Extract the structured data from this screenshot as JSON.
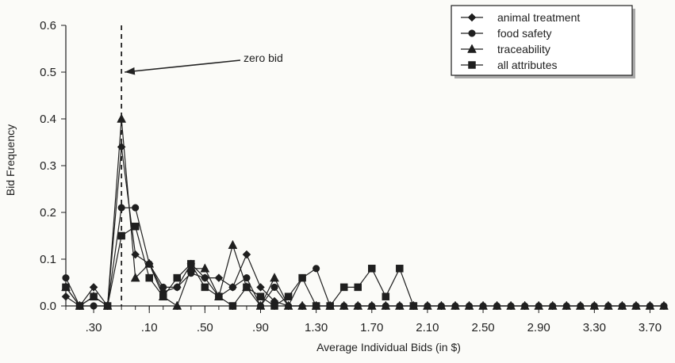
{
  "chart_data": {
    "type": "line",
    "xlabel": "Average Individual Bids (in $)",
    "ylabel": "Bid Frequency",
    "xlim": [
      -0.5,
      3.8
    ],
    "ylim": [
      0,
      0.6
    ],
    "yticks": [
      0.0,
      0.1,
      0.2,
      0.3,
      0.4,
      0.5,
      0.6
    ],
    "ytick_labels": [
      "0.0",
      "0.1",
      "0.2",
      "0.3",
      "0.4",
      "0.5",
      "0.6"
    ],
    "xtick_labels": [
      ".30",
      ".10",
      ".50",
      ".90",
      "1.30",
      "1.70",
      "2.10",
      "2.50",
      "2.90",
      "3.30",
      "3.70"
    ],
    "xtick_values": [
      -0.3,
      0.1,
      0.5,
      0.9,
      1.3,
      1.7,
      2.1,
      2.5,
      2.9,
      3.3,
      3.7
    ],
    "x": [
      -0.5,
      -0.4,
      -0.3,
      -0.2,
      -0.1,
      0.0,
      0.1,
      0.2,
      0.3,
      0.4,
      0.5,
      0.6,
      0.7,
      0.8,
      0.9,
      1.0,
      1.1,
      1.2,
      1.3,
      1.4,
      1.5,
      1.6,
      1.7,
      1.8,
      1.9,
      2.0,
      2.1,
      2.2,
      2.3,
      2.4,
      2.5,
      2.6,
      2.7,
      2.8,
      2.9,
      3.0,
      3.1,
      3.2,
      3.3,
      3.4,
      3.5,
      3.6,
      3.7,
      3.8
    ],
    "series": [
      {
        "name": "animal treatment",
        "marker": "diamond",
        "points": [
          [
            -0.5,
            0.02
          ],
          [
            -0.4,
            0.0
          ],
          [
            -0.3,
            0.04
          ],
          [
            -0.2,
            0.0
          ],
          [
            -0.1,
            0.34
          ],
          [
            0.0,
            0.11
          ],
          [
            0.1,
            0.09
          ],
          [
            0.2,
            0.03
          ],
          [
            0.3,
            0.04
          ],
          [
            0.4,
            0.09
          ],
          [
            0.5,
            0.06
          ],
          [
            0.6,
            0.06
          ],
          [
            0.7,
            0.04
          ],
          [
            0.8,
            0.11
          ],
          [
            0.9,
            0.04
          ],
          [
            1.0,
            0.01
          ],
          [
            1.1,
            0.0
          ],
          [
            1.2,
            0.0
          ]
        ]
      },
      {
        "name": "food safety",
        "marker": "circle",
        "points": [
          [
            -0.5,
            0.06
          ],
          [
            -0.4,
            0.0
          ],
          [
            -0.3,
            0.0
          ],
          [
            -0.2,
            0.0
          ],
          [
            -0.1,
            0.21
          ],
          [
            0.0,
            0.21
          ],
          [
            0.1,
            0.09
          ],
          [
            0.2,
            0.04
          ],
          [
            0.3,
            0.04
          ],
          [
            0.4,
            0.07
          ],
          [
            0.5,
            0.06
          ],
          [
            0.6,
            0.02
          ],
          [
            0.7,
            0.04
          ],
          [
            0.8,
            0.06
          ],
          [
            0.9,
            0.0
          ],
          [
            1.0,
            0.04
          ],
          [
            1.1,
            0.0
          ],
          [
            1.2,
            0.06
          ],
          [
            1.3,
            0.08
          ],
          [
            1.4,
            0.0
          ],
          [
            1.5,
            0.0
          ],
          [
            1.6,
            0.0
          ],
          [
            1.7,
            0.0
          ],
          [
            1.8,
            0.0
          ],
          [
            1.9,
            0.0
          ],
          [
            2.0,
            0.0
          ],
          [
            2.1,
            0.0
          ],
          [
            2.2,
            0.0
          ],
          [
            2.3,
            0.0
          ],
          [
            2.4,
            0.0
          ],
          [
            2.5,
            0.0
          ],
          [
            2.6,
            0.0
          ],
          [
            2.7,
            0.0
          ],
          [
            2.8,
            0.0
          ],
          [
            2.9,
            0.0
          ],
          [
            3.0,
            0.0
          ],
          [
            3.1,
            0.0
          ],
          [
            3.2,
            0.0
          ],
          [
            3.3,
            0.0
          ],
          [
            3.4,
            0.0
          ],
          [
            3.5,
            0.0
          ],
          [
            3.6,
            0.0
          ],
          [
            3.7,
            0.0
          ],
          [
            3.8,
            0.0
          ]
        ]
      },
      {
        "name": "traceability",
        "marker": "triangle",
        "points": [
          [
            -0.5,
            0.04
          ],
          [
            -0.4,
            0.0
          ],
          [
            -0.3,
            0.02
          ],
          [
            -0.2,
            0.0
          ],
          [
            -0.1,
            0.4
          ],
          [
            0.0,
            0.06
          ],
          [
            0.1,
            0.09
          ],
          [
            0.2,
            0.02
          ],
          [
            0.3,
            0.0
          ],
          [
            0.4,
            0.08
          ],
          [
            0.5,
            0.08
          ],
          [
            0.6,
            0.02
          ],
          [
            0.7,
            0.13
          ],
          [
            0.8,
            0.04
          ],
          [
            0.9,
            0.0
          ],
          [
            1.0,
            0.06
          ],
          [
            1.1,
            0.0
          ],
          [
            1.2,
            0.0
          ],
          [
            1.3,
            0.0
          ],
          [
            1.4,
            0.0
          ],
          [
            1.5,
            0.0
          ],
          [
            1.6,
            0.0
          ],
          [
            1.7,
            0.0
          ],
          [
            1.8,
            0.0
          ],
          [
            1.9,
            0.0
          ],
          [
            2.0,
            0.0
          ],
          [
            2.1,
            0.0
          ],
          [
            2.2,
            0.0
          ],
          [
            2.3,
            0.0
          ],
          [
            2.4,
            0.0
          ],
          [
            2.5,
            0.0
          ],
          [
            2.6,
            0.0
          ],
          [
            2.7,
            0.0
          ],
          [
            2.8,
            0.0
          ],
          [
            2.9,
            0.0
          ],
          [
            3.0,
            0.0
          ],
          [
            3.1,
            0.0
          ],
          [
            3.2,
            0.0
          ],
          [
            3.3,
            0.0
          ],
          [
            3.4,
            0.0
          ],
          [
            3.5,
            0.0
          ],
          [
            3.6,
            0.0
          ],
          [
            3.7,
            0.0
          ],
          [
            3.8,
            0.0
          ]
        ]
      },
      {
        "name": "all attributes",
        "marker": "square",
        "points": [
          [
            -0.5,
            0.04
          ],
          [
            -0.4,
            0.0
          ],
          [
            -0.3,
            0.02
          ],
          [
            -0.2,
            0.0
          ],
          [
            -0.1,
            0.15
          ],
          [
            0.0,
            0.17
          ],
          [
            0.1,
            0.06
          ],
          [
            0.2,
            0.02
          ],
          [
            0.3,
            0.06
          ],
          [
            0.4,
            0.09
          ],
          [
            0.5,
            0.04
          ],
          [
            0.6,
            0.02
          ],
          [
            0.7,
            0.0
          ],
          [
            0.8,
            0.04
          ],
          [
            0.9,
            0.02
          ],
          [
            1.0,
            0.0
          ],
          [
            1.1,
            0.02
          ],
          [
            1.2,
            0.06
          ],
          [
            1.3,
            0.0
          ],
          [
            1.4,
            0.0
          ],
          [
            1.5,
            0.04
          ],
          [
            1.6,
            0.04
          ],
          [
            1.7,
            0.08
          ],
          [
            1.8,
            0.02
          ],
          [
            1.9,
            0.08
          ],
          [
            2.0,
            0.0
          ]
        ]
      }
    ],
    "annotation": {
      "text": "zero bid",
      "x": -0.1
    },
    "legend": {
      "placement": "top-right",
      "entries": [
        "animal treatment",
        "food safety",
        "traceability",
        "all attributes"
      ]
    },
    "grid": false
  },
  "colors": {
    "background": "#fbfbf8",
    "ink": "#1f1f1f",
    "legend_shadow": "#a9a9a9",
    "dashed_line": "#222222"
  }
}
